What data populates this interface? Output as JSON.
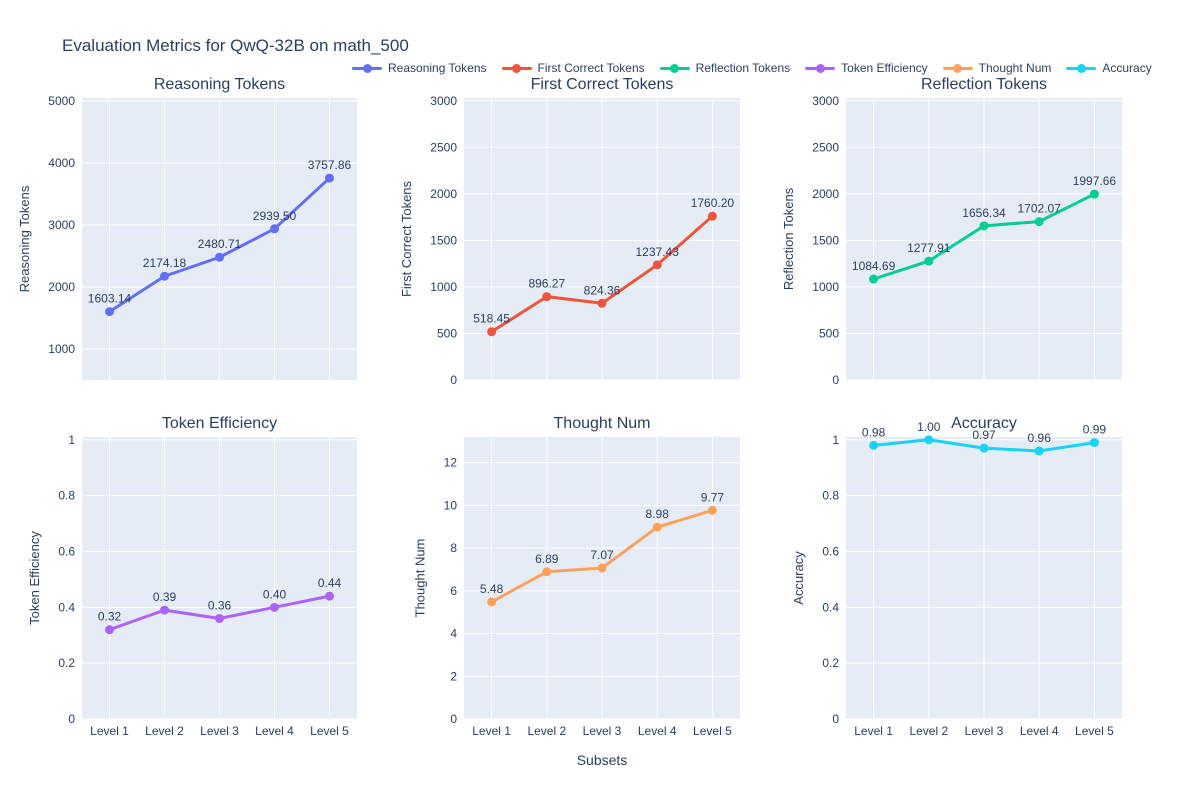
{
  "figure": {
    "title": "Evaluation Metrics for QwQ-32B on math_500",
    "xaxis_title": "Subsets"
  },
  "colors": {
    "text": "#2a3f5f",
    "plot_bg": "#e5ecf6",
    "grid": "#ffffff",
    "paper_bg": "#ffffff"
  },
  "legend": {
    "items": [
      {
        "label": "Reasoning Tokens",
        "color": "#636efa"
      },
      {
        "label": "First Correct Tokens",
        "color": "#ef553b"
      },
      {
        "label": "Reflection Tokens",
        "color": "#00cc96"
      },
      {
        "label": "Token Efficiency",
        "color": "#ab63fa"
      },
      {
        "label": "Thought Num",
        "color": "#ffa15a"
      },
      {
        "label": "Accuracy",
        "color": "#19d3f3"
      }
    ]
  },
  "chart_data": [
    {
      "type": "line",
      "title": "Reasoning Tokens",
      "ylabel": "Reasoning Tokens",
      "color": "#636efa",
      "categories": [
        "Level 1",
        "Level 2",
        "Level 3",
        "Level 4",
        "Level 5"
      ],
      "values": [
        1603.14,
        2174.18,
        2480.71,
        2939.5,
        3757.86
      ],
      "labels": [
        "1603.14",
        "2174.18",
        "2480.71",
        "2939.50",
        "3757.86"
      ],
      "yticks": [
        1000,
        2000,
        3000,
        4000,
        5000
      ],
      "ylim": [
        500,
        5050
      ],
      "show_x_ticks": false,
      "grid": true,
      "legend_position": "top"
    },
    {
      "type": "line",
      "title": "First Correct Tokens",
      "ylabel": "First Correct Tokens",
      "color": "#ef553b",
      "categories": [
        "Level 1",
        "Level 2",
        "Level 3",
        "Level 4",
        "Level 5"
      ],
      "values": [
        518.45,
        896.27,
        824.36,
        1237.43,
        1760.2
      ],
      "labels": [
        "518.45",
        "896.27",
        "824.36",
        "1237.43",
        "1760.20"
      ],
      "yticks": [
        0,
        500,
        1000,
        1500,
        2000,
        2500,
        3000
      ],
      "ylim": [
        0,
        3030
      ],
      "show_x_ticks": false,
      "grid": true,
      "legend_position": "top"
    },
    {
      "type": "line",
      "title": "Reflection Tokens",
      "ylabel": "Reflection Tokens",
      "color": "#00cc96",
      "categories": [
        "Level 1",
        "Level 2",
        "Level 3",
        "Level 4",
        "Level 5"
      ],
      "values": [
        1084.69,
        1277.91,
        1656.34,
        1702.07,
        1997.66
      ],
      "labels": [
        "1084.69",
        "1277.91",
        "1656.34",
        "1702.07",
        "1997.66"
      ],
      "yticks": [
        0,
        500,
        1000,
        1500,
        2000,
        2500,
        3000
      ],
      "ylim": [
        0,
        3030
      ],
      "show_x_ticks": false,
      "grid": true,
      "legend_position": "top"
    },
    {
      "type": "line",
      "title": "Token Efficiency",
      "ylabel": "Token Efficiency",
      "color": "#ab63fa",
      "categories": [
        "Level 1",
        "Level 2",
        "Level 3",
        "Level 4",
        "Level 5"
      ],
      "values": [
        0.32,
        0.39,
        0.36,
        0.4,
        0.44
      ],
      "labels": [
        "0.32",
        "0.39",
        "0.36",
        "0.40",
        "0.44"
      ],
      "yticks": [
        0,
        0.2,
        0.4,
        0.6,
        0.8,
        1
      ],
      "ylim": [
        0,
        1.01
      ],
      "show_x_ticks": true,
      "grid": true,
      "legend_position": "top"
    },
    {
      "type": "line",
      "title": "Thought Num",
      "ylabel": "Thought Num",
      "color": "#ffa15a",
      "categories": [
        "Level 1",
        "Level 2",
        "Level 3",
        "Level 4",
        "Level 5"
      ],
      "values": [
        5.48,
        6.89,
        7.07,
        8.98,
        9.77
      ],
      "labels": [
        "5.48",
        "6.89",
        "7.07",
        "8.98",
        "9.77"
      ],
      "yticks": [
        0,
        2,
        4,
        6,
        8,
        10,
        12
      ],
      "ylim": [
        0,
        13.2
      ],
      "show_x_ticks": true,
      "grid": true,
      "legend_position": "top"
    },
    {
      "type": "line",
      "title": "Accuracy",
      "ylabel": "Accuracy",
      "color": "#19d3f3",
      "categories": [
        "Level 1",
        "Level 2",
        "Level 3",
        "Level 4",
        "Level 5"
      ],
      "values": [
        0.98,
        1.0,
        0.97,
        0.96,
        0.99
      ],
      "labels": [
        "0.98",
        "1.00",
        "0.97",
        "0.96",
        "0.99"
      ],
      "yticks": [
        0,
        0.2,
        0.4,
        0.6,
        0.8,
        1
      ],
      "ylim": [
        0,
        1.01
      ],
      "show_x_ticks": true,
      "grid": true,
      "legend_position": "top"
    }
  ]
}
